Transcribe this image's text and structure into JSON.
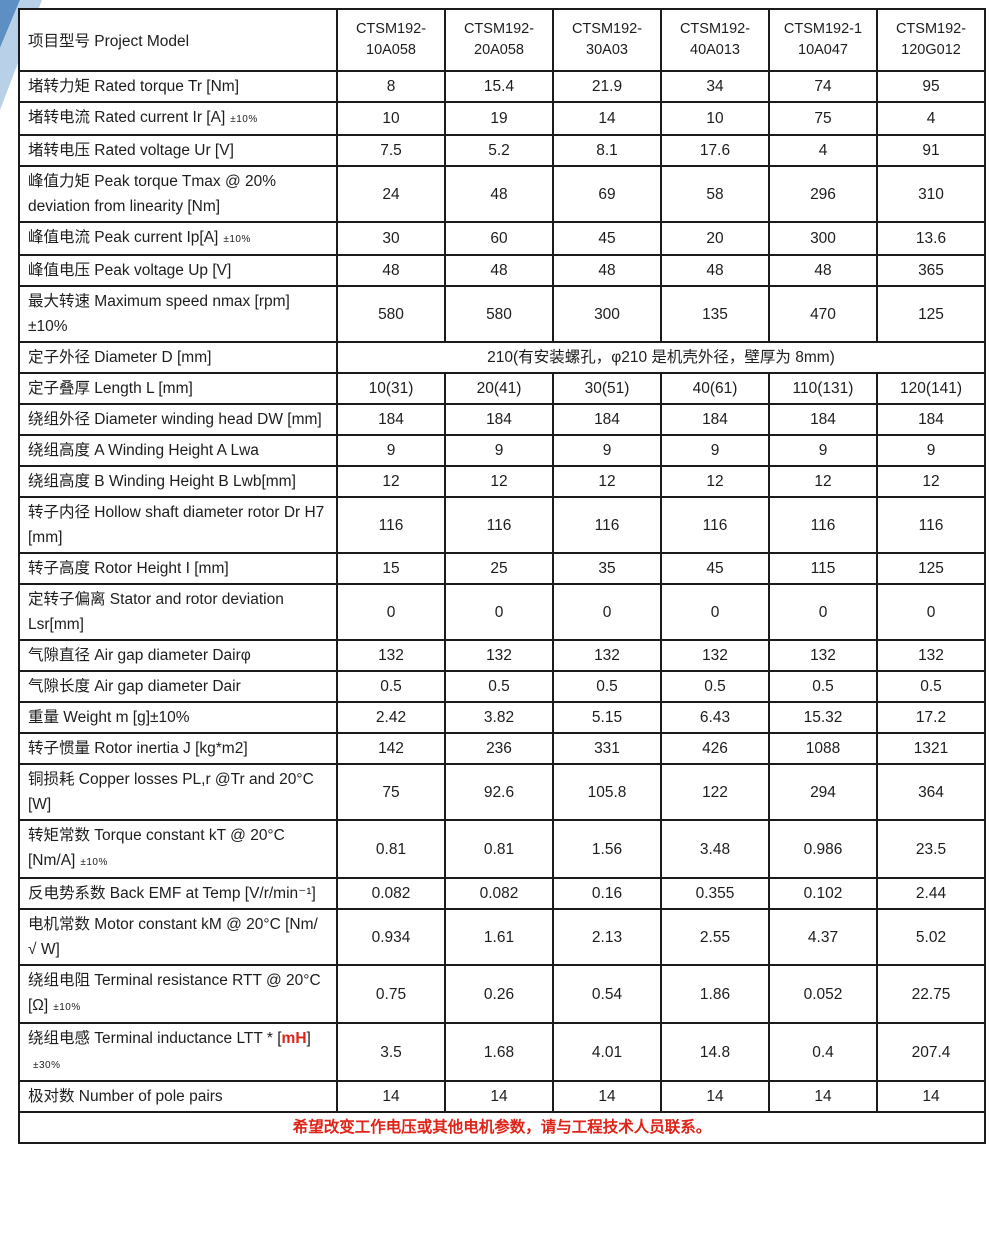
{
  "page": {
    "background": "#ffffff",
    "text_color": "#1d1d1f",
    "red_accent": "#df2318",
    "corner_dark_blue": "#5d8fc4",
    "corner_light_blue": "#b9d1e8"
  },
  "table": {
    "header": {
      "label": "项目型号 Project Model",
      "models": [
        "CTSM192-\n10A058",
        "CTSM192-\n20A058",
        "CTSM192-\n30A03",
        "CTSM192-\n40A013",
        "CTSM192-1\n10A047",
        "CTSM192-\n120G012"
      ]
    },
    "rows": [
      {
        "label": "堵转力矩 Rated torque Tr  [Nm]",
        "values": [
          "8",
          "15.4",
          "21.9",
          "34",
          "74",
          "95"
        ]
      },
      {
        "label": "堵转电流 Rated current Ir [A]",
        "small": "±10%",
        "values": [
          "10",
          "19",
          "14",
          "10",
          "75",
          "4"
        ]
      },
      {
        "label": "堵转电压 Rated voltage Ur [V]",
        "values": [
          "7.5",
          "5.2",
          "8.1",
          "17.6",
          "4",
          "91"
        ]
      },
      {
        "label": "峰值力矩 Peak torque Tmax @ 20% deviation from linearity [Nm]",
        "values": [
          "24",
          "48",
          "69",
          "58",
          "296",
          "310"
        ]
      },
      {
        "label": "峰值电流 Peak current Ip[A]",
        "small": "±10%",
        "values": [
          "30",
          "60",
          "45",
          "20",
          "300",
          "13.6"
        ]
      },
      {
        "label": "峰值电压 Peak voltage Up [V]",
        "values": [
          "48",
          "48",
          "48",
          "48",
          "48",
          "365"
        ]
      },
      {
        "label": "最大转速 Maximum speed nmax [rpm] ±10%",
        "values": [
          "580",
          "580",
          "300",
          "135",
          "470",
          "125"
        ]
      },
      {
        "label": "定子外径 Diameter D [mm]",
        "merged": "210(有安装螺孔，φ210 是机壳外径，壁厚为 8mm)"
      },
      {
        "label": "定子叠厚 Length L [mm]",
        "values": [
          "10(31)",
          "20(41)",
          "30(51)",
          "40(61)",
          "110(131)",
          "120(141)"
        ]
      },
      {
        "label": "绕组外径 Diameter winding head DW [mm]",
        "values": [
          "184",
          "184",
          "184",
          "184",
          "184",
          "184"
        ]
      },
      {
        "label": "绕组高度 A Winding Height A Lwa",
        "values": [
          "9",
          "9",
          "9",
          "9",
          "9",
          "9"
        ]
      },
      {
        "label": "绕组高度 B Winding Height B Lwb[mm]",
        "values": [
          "12",
          "12",
          "12",
          "12",
          "12",
          "12"
        ]
      },
      {
        "label": "转子内径 Hollow shaft diameter rotor Dr H7 [mm]",
        "values": [
          "116",
          "116",
          "116",
          "116",
          "116",
          "116"
        ]
      },
      {
        "label": "转子高度 Rotor Height I [mm]",
        "values": [
          "15",
          "25",
          "35",
          "45",
          "115",
          "125"
        ]
      },
      {
        "label": "定转子偏离 Stator and rotor deviation Lsr[mm]",
        "values": [
          "0",
          "0",
          "0",
          "0",
          "0",
          "0"
        ]
      },
      {
        "label": "气隙直径 Air gap diameter Dairφ",
        "values": [
          "132",
          "132",
          "132",
          "132",
          "132",
          "132"
        ]
      },
      {
        "label": "气隙长度 Air gap diameter Dair",
        "values": [
          "0.5",
          "0.5",
          "0.5",
          "0.5",
          "0.5",
          "0.5"
        ]
      },
      {
        "label": "重量 Weight m [g]±10%",
        "values": [
          "2.42",
          "3.82",
          "5.15",
          "6.43",
          "15.32",
          "17.2"
        ]
      },
      {
        "label": "转子惯量 Rotor inertia J [kg*m2]",
        "values": [
          "142",
          "236",
          "331",
          "426",
          "1088",
          "1321"
        ]
      },
      {
        "label": "铜损耗 Copper losses PL,r @Tr and 20°C [W]",
        "values": [
          "75",
          "92.6",
          "105.8",
          "122",
          "294",
          "364"
        ]
      },
      {
        "label": "转矩常数 Torque constant kT @ 20°C [Nm/A]",
        "small": "±10%",
        "values": [
          "0.81",
          "0.81",
          "1.56",
          "3.48",
          "0.986",
          "23.5"
        ]
      },
      {
        "label": "反电势系数 Back EMF at Temp [V/r/min⁻¹]",
        "values": [
          "0.082",
          "0.082",
          "0.16",
          "0.355",
          "0.102",
          "2.44"
        ]
      },
      {
        "label": "电机常数 Motor constant kM @ 20°C [Nm/ √ W]",
        "values": [
          "0.934",
          "1.61",
          "2.13",
          "2.55",
          "4.37",
          "5.02"
        ]
      },
      {
        "label": "绕组电阻 Terminal resistance RTT @ 20°C [Ω]",
        "small": "±10%",
        "values": [
          "0.75",
          "0.26",
          "0.54",
          "1.86",
          "0.052",
          "22.75"
        ]
      },
      {
        "label": "绕组电感 Terminal inductance LTT * [",
        "red": "mH",
        "after_red": "]",
        "small": "±30%",
        "values": [
          "3.5",
          "1.68",
          "4.01",
          "14.8",
          "0.4",
          "207.4"
        ]
      },
      {
        "label": "极对数 Number of pole pairs",
        "values": [
          "14",
          "14",
          "14",
          "14",
          "14",
          "14"
        ]
      }
    ],
    "footer": "希望改变工作电压或其他电机参数，请与工程技术人员联系。"
  }
}
